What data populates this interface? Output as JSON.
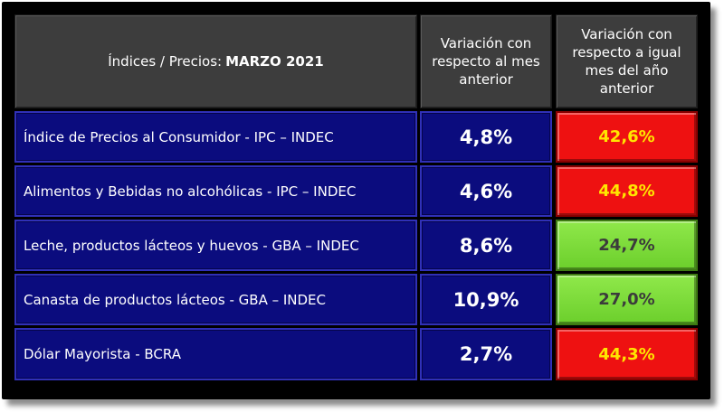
{
  "header": {
    "title_prefix": "Índices / Precios: ",
    "title_bold": "MARZO 2021",
    "col_month": "Variación con respecto al mes anterior",
    "col_year": "Variación con respecto a igual mes del año anterior"
  },
  "rows": [
    {
      "label": "Índice de Precios al Consumidor - IPC – INDEC",
      "month": "4,8%",
      "year": "42,6%",
      "year_color": "red"
    },
    {
      "label": "Alimentos y Bebidas no alcohólicas - IPC – INDEC",
      "month": "4,6%",
      "year": "44,8%",
      "year_color": "red"
    },
    {
      "label": "Leche, productos lácteos y huevos - GBA – INDEC",
      "month": "8,6%",
      "year": "24,7%",
      "year_color": "green"
    },
    {
      "label": "Canasta de productos lácteos - GBA – INDEC",
      "month": "10,9%",
      "year": "27,0%",
      "year_color": "green"
    },
    {
      "label": "Dólar Mayorista - BCRA",
      "month": "2,7%",
      "year": "44,3%",
      "year_color": "red"
    }
  ],
  "colors": {
    "red": "#ee1111",
    "green": "#7ddc3d",
    "blue": "#0b0c7e",
    "header": "#3d3d3d",
    "yellow_text": "#ffe600"
  }
}
